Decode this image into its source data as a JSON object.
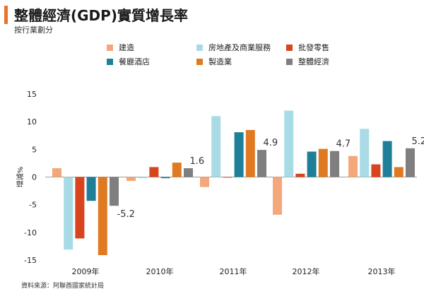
{
  "header": {
    "title": "整體經濟(GDP)實質增長率",
    "subtitle": "按行業劃分"
  },
  "source": "資料來源：阿聯酋國家統計局",
  "colors": {
    "construction": "#f4a77a",
    "realestate": "#a9dbe6",
    "retail": "#d8441e",
    "hospitality": "#1f7f99",
    "manufacturing": "#e07a22",
    "overall": "#7f7f7f",
    "title_accent": "#e8742a"
  },
  "chart_data": {
    "type": "bar",
    "title": "整體經濟(GDP)實質增長率",
    "subtitle": "按行業劃分",
    "ylabel": "增減%",
    "xlabel": "",
    "ylim": [
      -15,
      15
    ],
    "yticks": [
      15,
      10,
      5,
      0,
      -5,
      -10,
      -15
    ],
    "grid": false,
    "legend_position": "top",
    "categories": [
      "2009年",
      "2010年",
      "2011年",
      "2012年",
      "2013年"
    ],
    "series": [
      {
        "name": "建造",
        "color_key": "construction",
        "values": [
          1.6,
          -0.7,
          -1.8,
          -6.8,
          3.8
        ]
      },
      {
        "name": "房地產及商業服務",
        "color_key": "realestate",
        "values": [
          -13.1,
          -0.2,
          11.0,
          12.0,
          8.7
        ]
      },
      {
        "name": "批發零售",
        "color_key": "retail",
        "values": [
          -11.1,
          1.8,
          -0.1,
          0.6,
          2.3
        ]
      },
      {
        "name": "餐廳酒店",
        "color_key": "hospitality",
        "values": [
          -4.3,
          -0.2,
          8.1,
          4.6,
          6.5
        ]
      },
      {
        "name": "製造業",
        "color_key": "manufacturing",
        "values": [
          -14.1,
          2.6,
          8.5,
          5.1,
          1.8
        ]
      },
      {
        "name": "整體經濟",
        "color_key": "overall",
        "values": [
          -5.2,
          1.6,
          4.9,
          4.7,
          5.2
        ]
      }
    ],
    "data_labels": [
      {
        "category_index": 0,
        "series_index": 5,
        "text": "-5.2"
      },
      {
        "category_index": 1,
        "series_index": 5,
        "text": "1.6"
      },
      {
        "category_index": 2,
        "series_index": 5,
        "text": "4.9"
      },
      {
        "category_index": 3,
        "series_index": 5,
        "text": "4.7"
      },
      {
        "category_index": 4,
        "series_index": 5,
        "text": "5.2"
      }
    ]
  }
}
